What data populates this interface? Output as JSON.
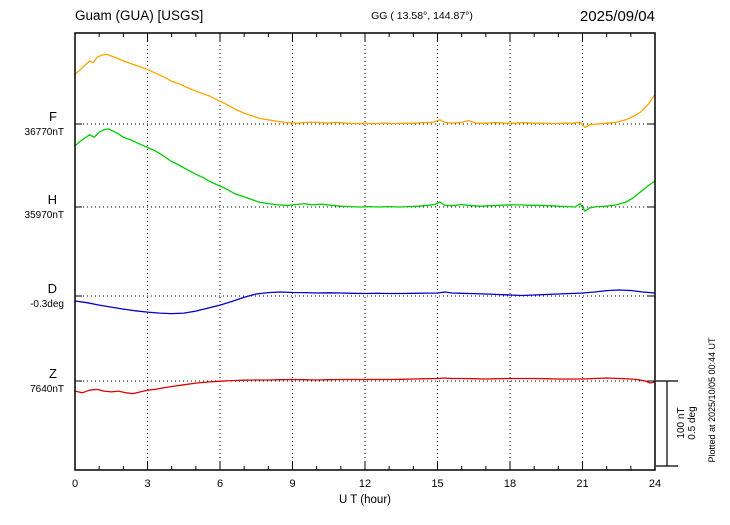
{
  "header": {
    "station": "Guam (GUA)  [USGS]",
    "coords": "GG ( 13.58°, 144.87°)",
    "date": "2025/09/04"
  },
  "axis": {
    "xlabel": "U T (hour)",
    "ticks": [
      "0",
      "3",
      "6",
      "9",
      "12",
      "15",
      "18",
      "21",
      "24"
    ]
  },
  "scalebar": {
    "nt": "100 nT",
    "deg": "0.5 deg"
  },
  "footer": {
    "plotted": "Plotted at 2025/10/05 00:44 UT"
  },
  "chart_data": {
    "type": "line",
    "title": "Guam (GUA) [USGS] magnetogram 2025/09/04",
    "xlabel": "U T (hour)",
    "xlim": [
      0,
      24
    ],
    "x_ticks": [
      0,
      3,
      6,
      9,
      12,
      15,
      18,
      21,
      24
    ],
    "grid": "dotted vertical lines every 3 h; dotted horizontal baseline per channel",
    "legend_position": "left baseline labels",
    "scale": {
      "nT_per_div": 100,
      "deg_per_div": 0.5
    },
    "series": [
      {
        "name": "F",
        "unit": "nT",
        "color": "#ffa500",
        "baseline_label": "36770nT",
        "baseline_value": 36770,
        "points": [
          [
            0,
            59
          ],
          [
            0.2,
            64
          ],
          [
            0.4,
            70
          ],
          [
            0.6,
            75
          ],
          [
            0.75,
            73
          ],
          [
            0.9,
            79
          ],
          [
            1.1,
            82
          ],
          [
            1.3,
            83
          ],
          [
            1.5,
            81
          ],
          [
            1.7,
            79
          ],
          [
            2,
            75
          ],
          [
            2.3,
            72
          ],
          [
            2.6,
            69
          ],
          [
            3,
            65
          ],
          [
            3.3,
            61
          ],
          [
            3.6,
            57
          ],
          [
            4,
            51
          ],
          [
            4.3,
            48
          ],
          [
            4.6,
            44
          ],
          [
            5,
            39
          ],
          [
            5.3,
            36
          ],
          [
            5.6,
            33
          ],
          [
            6,
            27
          ],
          [
            6.3,
            23
          ],
          [
            6.6,
            18
          ],
          [
            7,
            13
          ],
          [
            7.3,
            10
          ],
          [
            7.6,
            7
          ],
          [
            8,
            5
          ],
          [
            8.4,
            3
          ],
          [
            8.8,
            1.5
          ],
          [
            9.2,
            1
          ],
          [
            9.6,
            2
          ],
          [
            10,
            2
          ],
          [
            10.4,
            1
          ],
          [
            10.8,
            2
          ],
          [
            11.2,
            1
          ],
          [
            11.6,
            0.5
          ],
          [
            12,
            1
          ],
          [
            12.4,
            0.5
          ],
          [
            12.8,
            1
          ],
          [
            13.2,
            0.5
          ],
          [
            13.6,
            1
          ],
          [
            14,
            1
          ],
          [
            14.4,
            1.5
          ],
          [
            14.8,
            2
          ],
          [
            15.1,
            5
          ],
          [
            15.3,
            2
          ],
          [
            15.6,
            1
          ],
          [
            16,
            2
          ],
          [
            16.3,
            4
          ],
          [
            16.6,
            1
          ],
          [
            17,
            1
          ],
          [
            17.4,
            1.5
          ],
          [
            17.8,
            1
          ],
          [
            18.2,
            1
          ],
          [
            18.6,
            1.5
          ],
          [
            19,
            1
          ],
          [
            19.4,
            1
          ],
          [
            19.8,
            0.5
          ],
          [
            20.2,
            1
          ],
          [
            20.6,
            1
          ],
          [
            20.9,
            2
          ],
          [
            21.1,
            -4
          ],
          [
            21.3,
            -1
          ],
          [
            21.6,
            0
          ],
          [
            22,
            1
          ],
          [
            22.4,
            2
          ],
          [
            22.8,
            5
          ],
          [
            23.1,
            9
          ],
          [
            23.4,
            14
          ],
          [
            23.7,
            23
          ],
          [
            24,
            35
          ]
        ]
      },
      {
        "name": "H",
        "unit": "nT",
        "color": "#00cc00",
        "baseline_label": "35970nT",
        "baseline_value": 35970,
        "points": [
          [
            0,
            73
          ],
          [
            0.2,
            78
          ],
          [
            0.4,
            82
          ],
          [
            0.6,
            86
          ],
          [
            0.8,
            83
          ],
          [
            1,
            89
          ],
          [
            1.2,
            92
          ],
          [
            1.4,
            93
          ],
          [
            1.6,
            90
          ],
          [
            1.8,
            87
          ],
          [
            2,
            83
          ],
          [
            2.3,
            80
          ],
          [
            2.6,
            76
          ],
          [
            3,
            71
          ],
          [
            3.3,
            67
          ],
          [
            3.6,
            62
          ],
          [
            4,
            54
          ],
          [
            4.3,
            50
          ],
          [
            4.6,
            45
          ],
          [
            5,
            39
          ],
          [
            5.3,
            35
          ],
          [
            5.6,
            30
          ],
          [
            6,
            25
          ],
          [
            6.3,
            21
          ],
          [
            6.6,
            16
          ],
          [
            7,
            12
          ],
          [
            7.3,
            9
          ],
          [
            7.6,
            6
          ],
          [
            8,
            4
          ],
          [
            8.4,
            2.5
          ],
          [
            8.8,
            2
          ],
          [
            9.2,
            3
          ],
          [
            9.5,
            4
          ],
          [
            9.8,
            2.5
          ],
          [
            10.2,
            3.5
          ],
          [
            10.6,
            2
          ],
          [
            11,
            1
          ],
          [
            11.4,
            0.5
          ],
          [
            11.8,
            0
          ],
          [
            12.2,
            0.5
          ],
          [
            12.6,
            0
          ],
          [
            13,
            0.5
          ],
          [
            13.4,
            0
          ],
          [
            13.8,
            0.5
          ],
          [
            14.2,
            1
          ],
          [
            14.6,
            2
          ],
          [
            14.9,
            3
          ],
          [
            15.1,
            6
          ],
          [
            15.3,
            2
          ],
          [
            15.6,
            1.5
          ],
          [
            16,
            3
          ],
          [
            16.4,
            1.5
          ],
          [
            16.8,
            1
          ],
          [
            17.2,
            1.5
          ],
          [
            17.6,
            2
          ],
          [
            18,
            2.5
          ],
          [
            18.4,
            2.5
          ],
          [
            18.8,
            2
          ],
          [
            19.2,
            2
          ],
          [
            19.6,
            1.5
          ],
          [
            20,
            1
          ],
          [
            20.4,
            0.5
          ],
          [
            20.7,
            0
          ],
          [
            20.9,
            4
          ],
          [
            21.1,
            -5
          ],
          [
            21.3,
            -1
          ],
          [
            21.6,
            0.5
          ],
          [
            22,
            1
          ],
          [
            22.4,
            2.5
          ],
          [
            22.8,
            6
          ],
          [
            23.1,
            11
          ],
          [
            23.4,
            18
          ],
          [
            23.7,
            25
          ],
          [
            24,
            31
          ]
        ]
      },
      {
        "name": "D",
        "unit": "deg",
        "color": "#0000cc",
        "baseline_label": "-0.3deg",
        "baseline_value": -0.3,
        "points": [
          [
            0,
            -0.03
          ],
          [
            0.5,
            -0.04
          ],
          [
            1,
            -0.054
          ],
          [
            1.5,
            -0.066
          ],
          [
            2,
            -0.078
          ],
          [
            2.5,
            -0.088
          ],
          [
            3,
            -0.096
          ],
          [
            3.5,
            -0.102
          ],
          [
            4,
            -0.105
          ],
          [
            4.5,
            -0.102
          ],
          [
            5,
            -0.09
          ],
          [
            5.5,
            -0.072
          ],
          [
            6,
            -0.054
          ],
          [
            6.5,
            -0.032
          ],
          [
            7,
            -0.008
          ],
          [
            7.5,
            0.012
          ],
          [
            8,
            0.02
          ],
          [
            8.5,
            0.024
          ],
          [
            9,
            0.021
          ],
          [
            9.5,
            0.02
          ],
          [
            10,
            0.018
          ],
          [
            10.5,
            0.019
          ],
          [
            11,
            0.018
          ],
          [
            11.5,
            0.016
          ],
          [
            12,
            0.015
          ],
          [
            12.5,
            0.016
          ],
          [
            13,
            0.015
          ],
          [
            13.5,
            0.015
          ],
          [
            14,
            0.016
          ],
          [
            14.5,
            0.017
          ],
          [
            15,
            0.018
          ],
          [
            15.3,
            0.024
          ],
          [
            15.6,
            0.018
          ],
          [
            16,
            0.016
          ],
          [
            16.5,
            0.014
          ],
          [
            17,
            0.012
          ],
          [
            17.5,
            0.009
          ],
          [
            18,
            0.006
          ],
          [
            18.5,
            0.003
          ],
          [
            19,
            0.006
          ],
          [
            19.5,
            0.009
          ],
          [
            20,
            0.012
          ],
          [
            20.5,
            0.015
          ],
          [
            21,
            0.018
          ],
          [
            21.5,
            0.024
          ],
          [
            22,
            0.032
          ],
          [
            22.5,
            0.036
          ],
          [
            23,
            0.033
          ],
          [
            23.5,
            0.024
          ],
          [
            24,
            0.018
          ]
        ]
      },
      {
        "name": "Z",
        "unit": "nT",
        "color": "#dd0000",
        "baseline_label": "7640nT",
        "baseline_value": 7640,
        "points": [
          [
            0,
            -12
          ],
          [
            0.3,
            -14
          ],
          [
            0.6,
            -11
          ],
          [
            0.9,
            -10
          ],
          [
            1.2,
            -12
          ],
          [
            1.5,
            -13
          ],
          [
            1.8,
            -12
          ],
          [
            2.1,
            -14
          ],
          [
            2.4,
            -15
          ],
          [
            2.7,
            -13
          ],
          [
            3,
            -11
          ],
          [
            3.3,
            -10
          ],
          [
            3.6,
            -8.5
          ],
          [
            4,
            -6.5
          ],
          [
            4.5,
            -4.5
          ],
          [
            5,
            -2.5
          ],
          [
            5.5,
            -1.2
          ],
          [
            6,
            -0.2
          ],
          [
            6.5,
            0.5
          ],
          [
            7,
            1
          ],
          [
            7.5,
            1.2
          ],
          [
            8,
            1.2
          ],
          [
            8.5,
            1.5
          ],
          [
            9,
            1.8
          ],
          [
            9.5,
            1.5
          ],
          [
            10,
            1.2
          ],
          [
            10.5,
            1.5
          ],
          [
            11,
            1.8
          ],
          [
            11.5,
            1.8
          ],
          [
            12,
            1.8
          ],
          [
            12.5,
            1.8
          ],
          [
            13,
            1.8
          ],
          [
            13.5,
            2
          ],
          [
            14,
            2.4
          ],
          [
            14.5,
            2.7
          ],
          [
            15,
            3
          ],
          [
            15.3,
            3.6
          ],
          [
            15.6,
            3
          ],
          [
            16,
            3
          ],
          [
            16.5,
            2.7
          ],
          [
            17,
            2.4
          ],
          [
            17.5,
            2.7
          ],
          [
            18,
            3
          ],
          [
            18.5,
            3
          ],
          [
            19,
            3
          ],
          [
            19.5,
            2.7
          ],
          [
            20,
            2.4
          ],
          [
            20.5,
            2.4
          ],
          [
            21,
            2.4
          ],
          [
            21.5,
            3
          ],
          [
            22,
            3.6
          ],
          [
            22.5,
            3
          ],
          [
            23,
            2.4
          ],
          [
            23.3,
            1.5
          ],
          [
            23.6,
            0
          ],
          [
            23.8,
            -2.4
          ],
          [
            24,
            -1.2
          ]
        ]
      }
    ]
  }
}
